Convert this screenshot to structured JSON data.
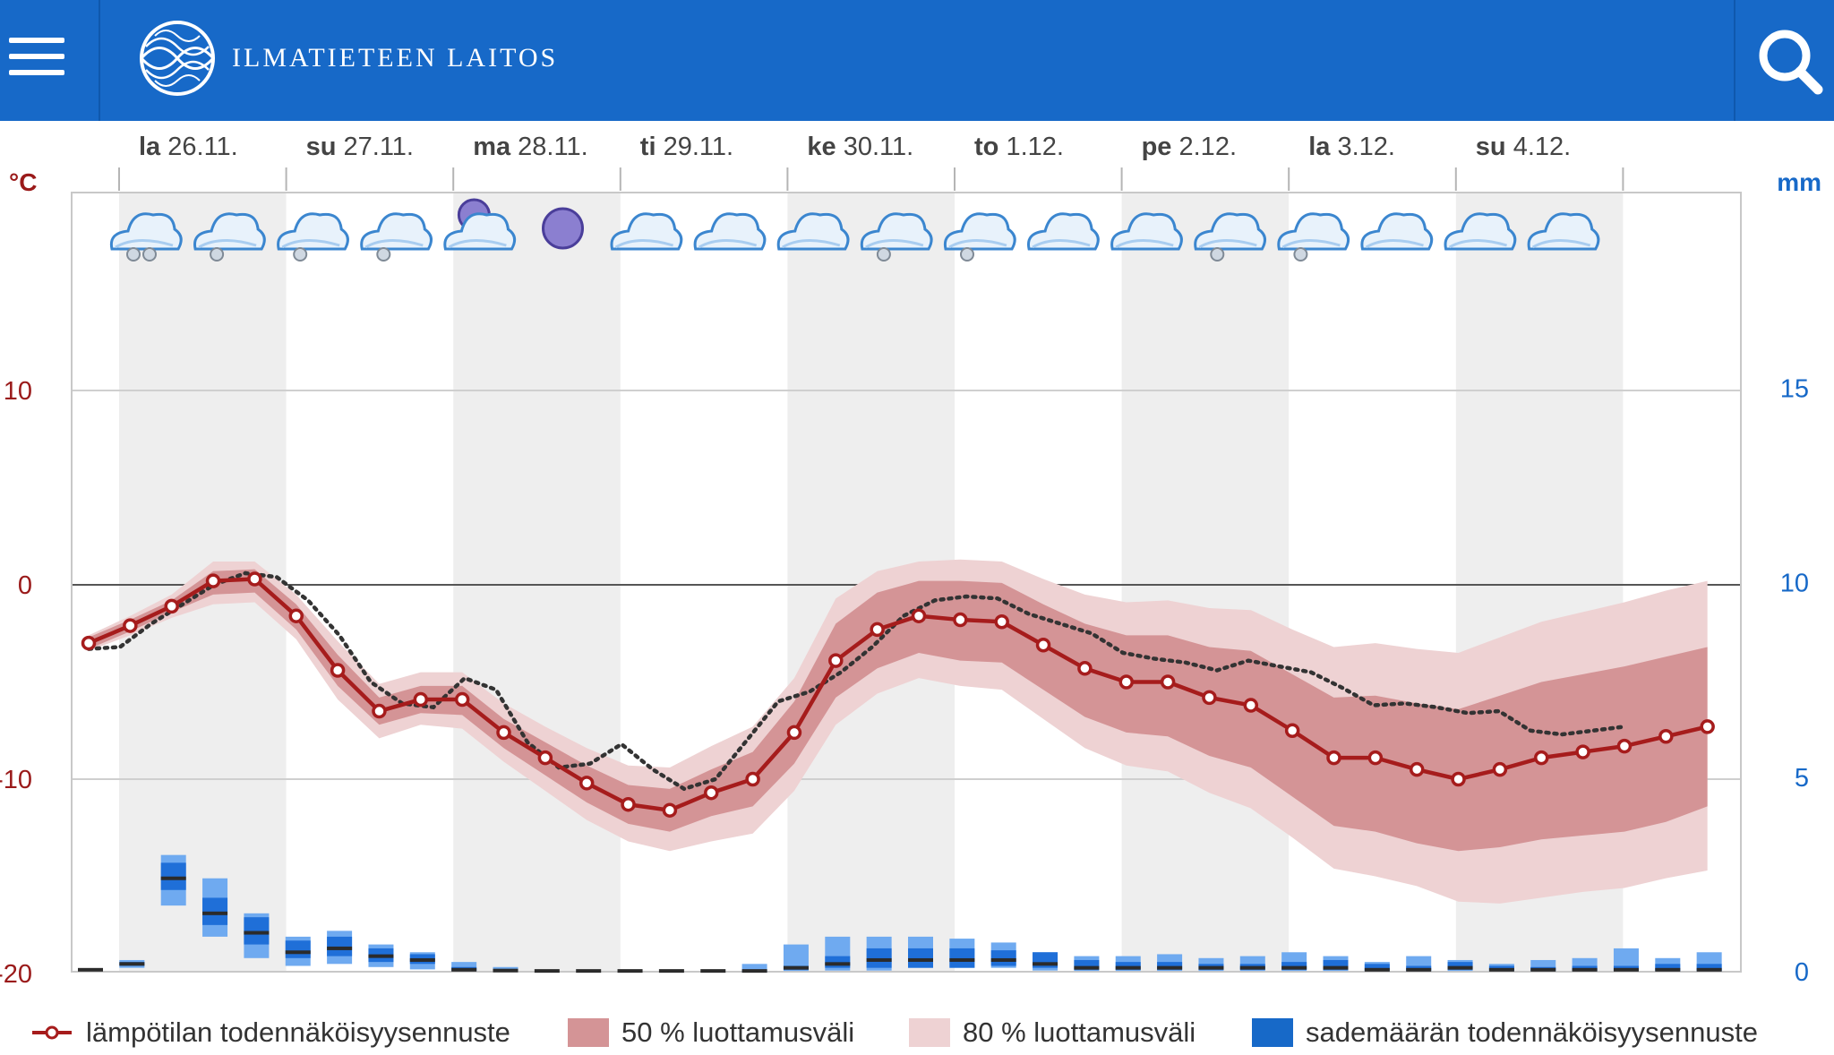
{
  "header": {
    "brand": "ILMATIETEEN LAITOS",
    "colors": {
      "bar": "#1769c8"
    },
    "icons": {
      "menu": "hamburger-menu-icon",
      "logo": "globe-logo-icon",
      "search": "search-icon"
    }
  },
  "chart_data": {
    "type": "line",
    "title": "",
    "xlabel": "",
    "ylabel": "°C",
    "y2label": "mm",
    "ylim": [
      -20,
      20
    ],
    "y2lim": [
      0,
      20
    ],
    "yticks": [
      "10",
      "0",
      "-10",
      "-20"
    ],
    "y2ticks": [
      "15",
      "10",
      "5",
      "0"
    ],
    "grid": true,
    "legend_position": "bottom",
    "days": [
      {
        "abbr": "la",
        "date": "26.11."
      },
      {
        "abbr": "su",
        "date": "27.11."
      },
      {
        "abbr": "ma",
        "date": "28.11."
      },
      {
        "abbr": "ti",
        "date": "29.11."
      },
      {
        "abbr": "ke",
        "date": "30.11."
      },
      {
        "abbr": "to",
        "date": "1.12."
      },
      {
        "abbr": "pe",
        "date": "2.12."
      },
      {
        "abbr": "la",
        "date": "3.12."
      },
      {
        "abbr": "su",
        "date": "4.12."
      }
    ],
    "weather_symbols": [
      "snow-cloud-icon",
      "snow-cloud-icon",
      "snow-cloud-icon",
      "snow-cloud-icon",
      "moon-cloud-icon",
      "moon-icon",
      "cloud-icon",
      "cloud-icon",
      "cloud-icon",
      "snow-cloud-icon",
      "snow-cloud-icon",
      "cloud-icon",
      "cloud-icon",
      "snow-cloud-icon",
      "snow-cloud-icon",
      "cloud-icon",
      "cloud-icon",
      "cloud-icon"
    ],
    "series": [
      {
        "name": "lämpötilan todennäköisyysennuste",
        "kind": "temperature",
        "values": [
          -3,
          -2.1,
          -1.1,
          0.2,
          0.3,
          -1.6,
          -4.4,
          -6.5,
          -5.9,
          -5.9,
          -7.6,
          -8.9,
          -10.2,
          -11.3,
          -11.6,
          -10.7,
          -10,
          -7.6,
          -3.9,
          -2.3,
          -1.6,
          -1.8,
          -1.9,
          -3.1,
          -4.3,
          -5,
          -5,
          -5.8,
          -6.2,
          -7.5,
          -8.9,
          -8.9,
          -9.5,
          -10,
          -9.5,
          -8.9,
          -8.6,
          -8.3,
          -7.8,
          -7.3
        ]
      },
      {
        "name": "",
        "kind": "observed",
        "values": [
          -3.3,
          -3.2,
          -2,
          -1,
          0,
          0.6,
          0.4,
          -0.8,
          -2.6,
          -5,
          -6.1,
          -6.3,
          -4.8,
          -5.4,
          -8.1,
          -9.4,
          -9.2,
          -8.2,
          -9.5,
          -10.5,
          -10,
          -8,
          -6,
          -5.5,
          -4.5,
          -3.2,
          -1.6,
          -0.8,
          -0.6,
          -0.7,
          -1.5,
          -2,
          -2.5,
          -3.5,
          -3.8,
          -4,
          -4.4,
          -3.9,
          -4.2,
          -4.5,
          -5.3,
          -6.2,
          -6.1,
          -6.3,
          -6.6,
          -6.5,
          -7.5,
          -7.7,
          -7.5,
          -7.3
        ]
      }
    ],
    "bands": [
      {
        "name": "50 % luottamusväli",
        "upper": [
          -2.7,
          -1.8,
          -0.8,
          0.7,
          0.8,
          -1,
          -3.6,
          -5.8,
          -5.2,
          -5.2,
          -6.9,
          -8.1,
          -9.3,
          -10.3,
          -10.5,
          -9.5,
          -8.6,
          -6,
          -2,
          -0.4,
          0.2,
          0.2,
          0.1,
          -1,
          -2,
          -2.6,
          -2.6,
          -3.2,
          -3.4,
          -4.6,
          -5.8,
          -5.7,
          -6.1,
          -6.4,
          -5.7,
          -5,
          -4.6,
          -4.2,
          -3.7,
          -3.2
        ],
        "lower": [
          -3.3,
          -2.4,
          -1.4,
          -0.5,
          -0.4,
          -2.3,
          -5.2,
          -7.2,
          -6.6,
          -6.7,
          -8.4,
          -9.8,
          -11.2,
          -12.3,
          -12.7,
          -11.9,
          -11.4,
          -9.2,
          -5.8,
          -4.3,
          -3.5,
          -3.9,
          -4,
          -5.4,
          -6.8,
          -7.6,
          -7.8,
          -8.8,
          -9.4,
          -10.9,
          -12.4,
          -12.7,
          -13.3,
          -13.7,
          -13.5,
          -13.1,
          -12.9,
          -12.7,
          -12.2,
          -11.4
        ]
      },
      {
        "name": "80 % luottamusväli",
        "upper": [
          -2.6,
          -1.6,
          -0.5,
          1.2,
          1.2,
          -0.5,
          -2.9,
          -5.1,
          -4.5,
          -4.5,
          -6.1,
          -7.3,
          -8.4,
          -9.3,
          -9.4,
          -8.3,
          -7.3,
          -4.8,
          -0.7,
          0.7,
          1.2,
          1.3,
          1.2,
          0.3,
          -0.5,
          -0.9,
          -0.8,
          -1.2,
          -1.3,
          -2.3,
          -3.2,
          -3,
          -3.3,
          -3.5,
          -2.7,
          -1.9,
          -1.4,
          -0.9,
          -0.3,
          0.2
        ],
        "lower": [
          -3.4,
          -2.6,
          -1.7,
          -1,
          -0.9,
          -2.8,
          -5.9,
          -7.9,
          -7.2,
          -7.4,
          -9.1,
          -10.6,
          -12.1,
          -13.2,
          -13.7,
          -13.2,
          -12.8,
          -10.6,
          -7.2,
          -5.6,
          -4.8,
          -5.2,
          -5.4,
          -6.9,
          -8.4,
          -9.3,
          -9.6,
          -10.7,
          -11.5,
          -13,
          -14.6,
          -15,
          -15.5,
          -16.3,
          -16.4,
          -16.1,
          -15.8,
          -15.6,
          -15.1,
          -14.7
        ]
      }
    ],
    "precipitation": {
      "name": "sademäärän todennäköisyysennuste",
      "median": [
        0.05,
        0.2,
        2.4,
        1.5,
        1,
        0.5,
        0.6,
        0.4,
        0.3,
        0.05,
        0.03,
        0.02,
        0.02,
        0.02,
        0.02,
        0.02,
        0.02,
        0.1,
        0.2,
        0.3,
        0.3,
        0.3,
        0.3,
        0.2,
        0.1,
        0.1,
        0.1,
        0.1,
        0.1,
        0.1,
        0.1,
        0.05,
        0.05,
        0.1,
        0.05,
        0.05,
        0.05,
        0.05,
        0.05,
        0.05
      ],
      "p50_low": [
        0,
        0.15,
        2.1,
        1.2,
        0.7,
        0.35,
        0.4,
        0.25,
        0.2,
        0.03,
        0.02,
        0.02,
        0.02,
        0.02,
        0.02,
        0.02,
        0.02,
        0.05,
        0.1,
        0.1,
        0.1,
        0.1,
        0.15,
        0.1,
        0.05,
        0.05,
        0.05,
        0.05,
        0.05,
        0.05,
        0.05,
        0.03,
        0.03,
        0.05,
        0.03,
        0.03,
        0.03,
        0.03,
        0.03,
        0.03
      ],
      "p50_high": [
        0.05,
        0.25,
        2.8,
        1.9,
        1.4,
        0.8,
        0.9,
        0.6,
        0.45,
        0.12,
        0.06,
        0.03,
        0.03,
        0.03,
        0.03,
        0.03,
        0.03,
        0.15,
        0.4,
        0.6,
        0.6,
        0.6,
        0.55,
        0.5,
        0.3,
        0.25,
        0.25,
        0.2,
        0.2,
        0.25,
        0.3,
        0.2,
        0.15,
        0.25,
        0.15,
        0.12,
        0.15,
        0.15,
        0.2,
        0.2
      ],
      "p80_high": [
        0.05,
        0.3,
        3.0,
        2.4,
        1.5,
        0.9,
        1.05,
        0.7,
        0.5,
        0.25,
        0.12,
        0.05,
        0.05,
        0.05,
        0.05,
        0.05,
        0.2,
        0.7,
        0.9,
        0.9,
        0.9,
        0.85,
        0.75,
        0.5,
        0.4,
        0.4,
        0.45,
        0.35,
        0.4,
        0.5,
        0.4,
        0.25,
        0.4,
        0.3,
        0.2,
        0.3,
        0.35,
        0.6,
        0.35,
        0.5
      ],
      "p80_low": [
        0,
        0.1,
        1.7,
        0.9,
        0.35,
        0.15,
        0.2,
        0.12,
        0.06,
        0.01,
        0.01,
        0.01,
        0.01,
        0.01,
        0.01,
        0.01,
        0.01,
        0.02,
        0.03,
        0.03,
        0.1,
        0.1,
        0.1,
        0.03,
        0.02,
        0.02,
        0.02,
        0.02,
        0.02,
        0.02,
        0.02,
        0.01,
        0.01,
        0.02,
        0.01,
        0.01,
        0.01,
        0.01,
        0.01,
        0.01
      ]
    },
    "colors": {
      "temperature": "#a61c1c",
      "observed": "#333333",
      "band50": "#d49496",
      "band80": "#eed2d3",
      "precip_median": "#1f6fd8",
      "precip_80": "#6faaf0",
      "precip_tick": "#2b2b2b",
      "left_axis": "#9a1a1a",
      "right_axis": "#1769c8",
      "day_shade": "#eeeeee"
    }
  },
  "legend": {
    "items": [
      {
        "label": "lämpötilan todennäköisyysennuste",
        "icon": "line-marker-icon"
      },
      {
        "label": "50 % luottamusväli",
        "icon": "band50-swatch"
      },
      {
        "label": "80 % luottamusväli",
        "icon": "band80-swatch"
      },
      {
        "label": "sademäärän todennäköisyysennuste",
        "icon": "precip-swatch"
      }
    ]
  }
}
